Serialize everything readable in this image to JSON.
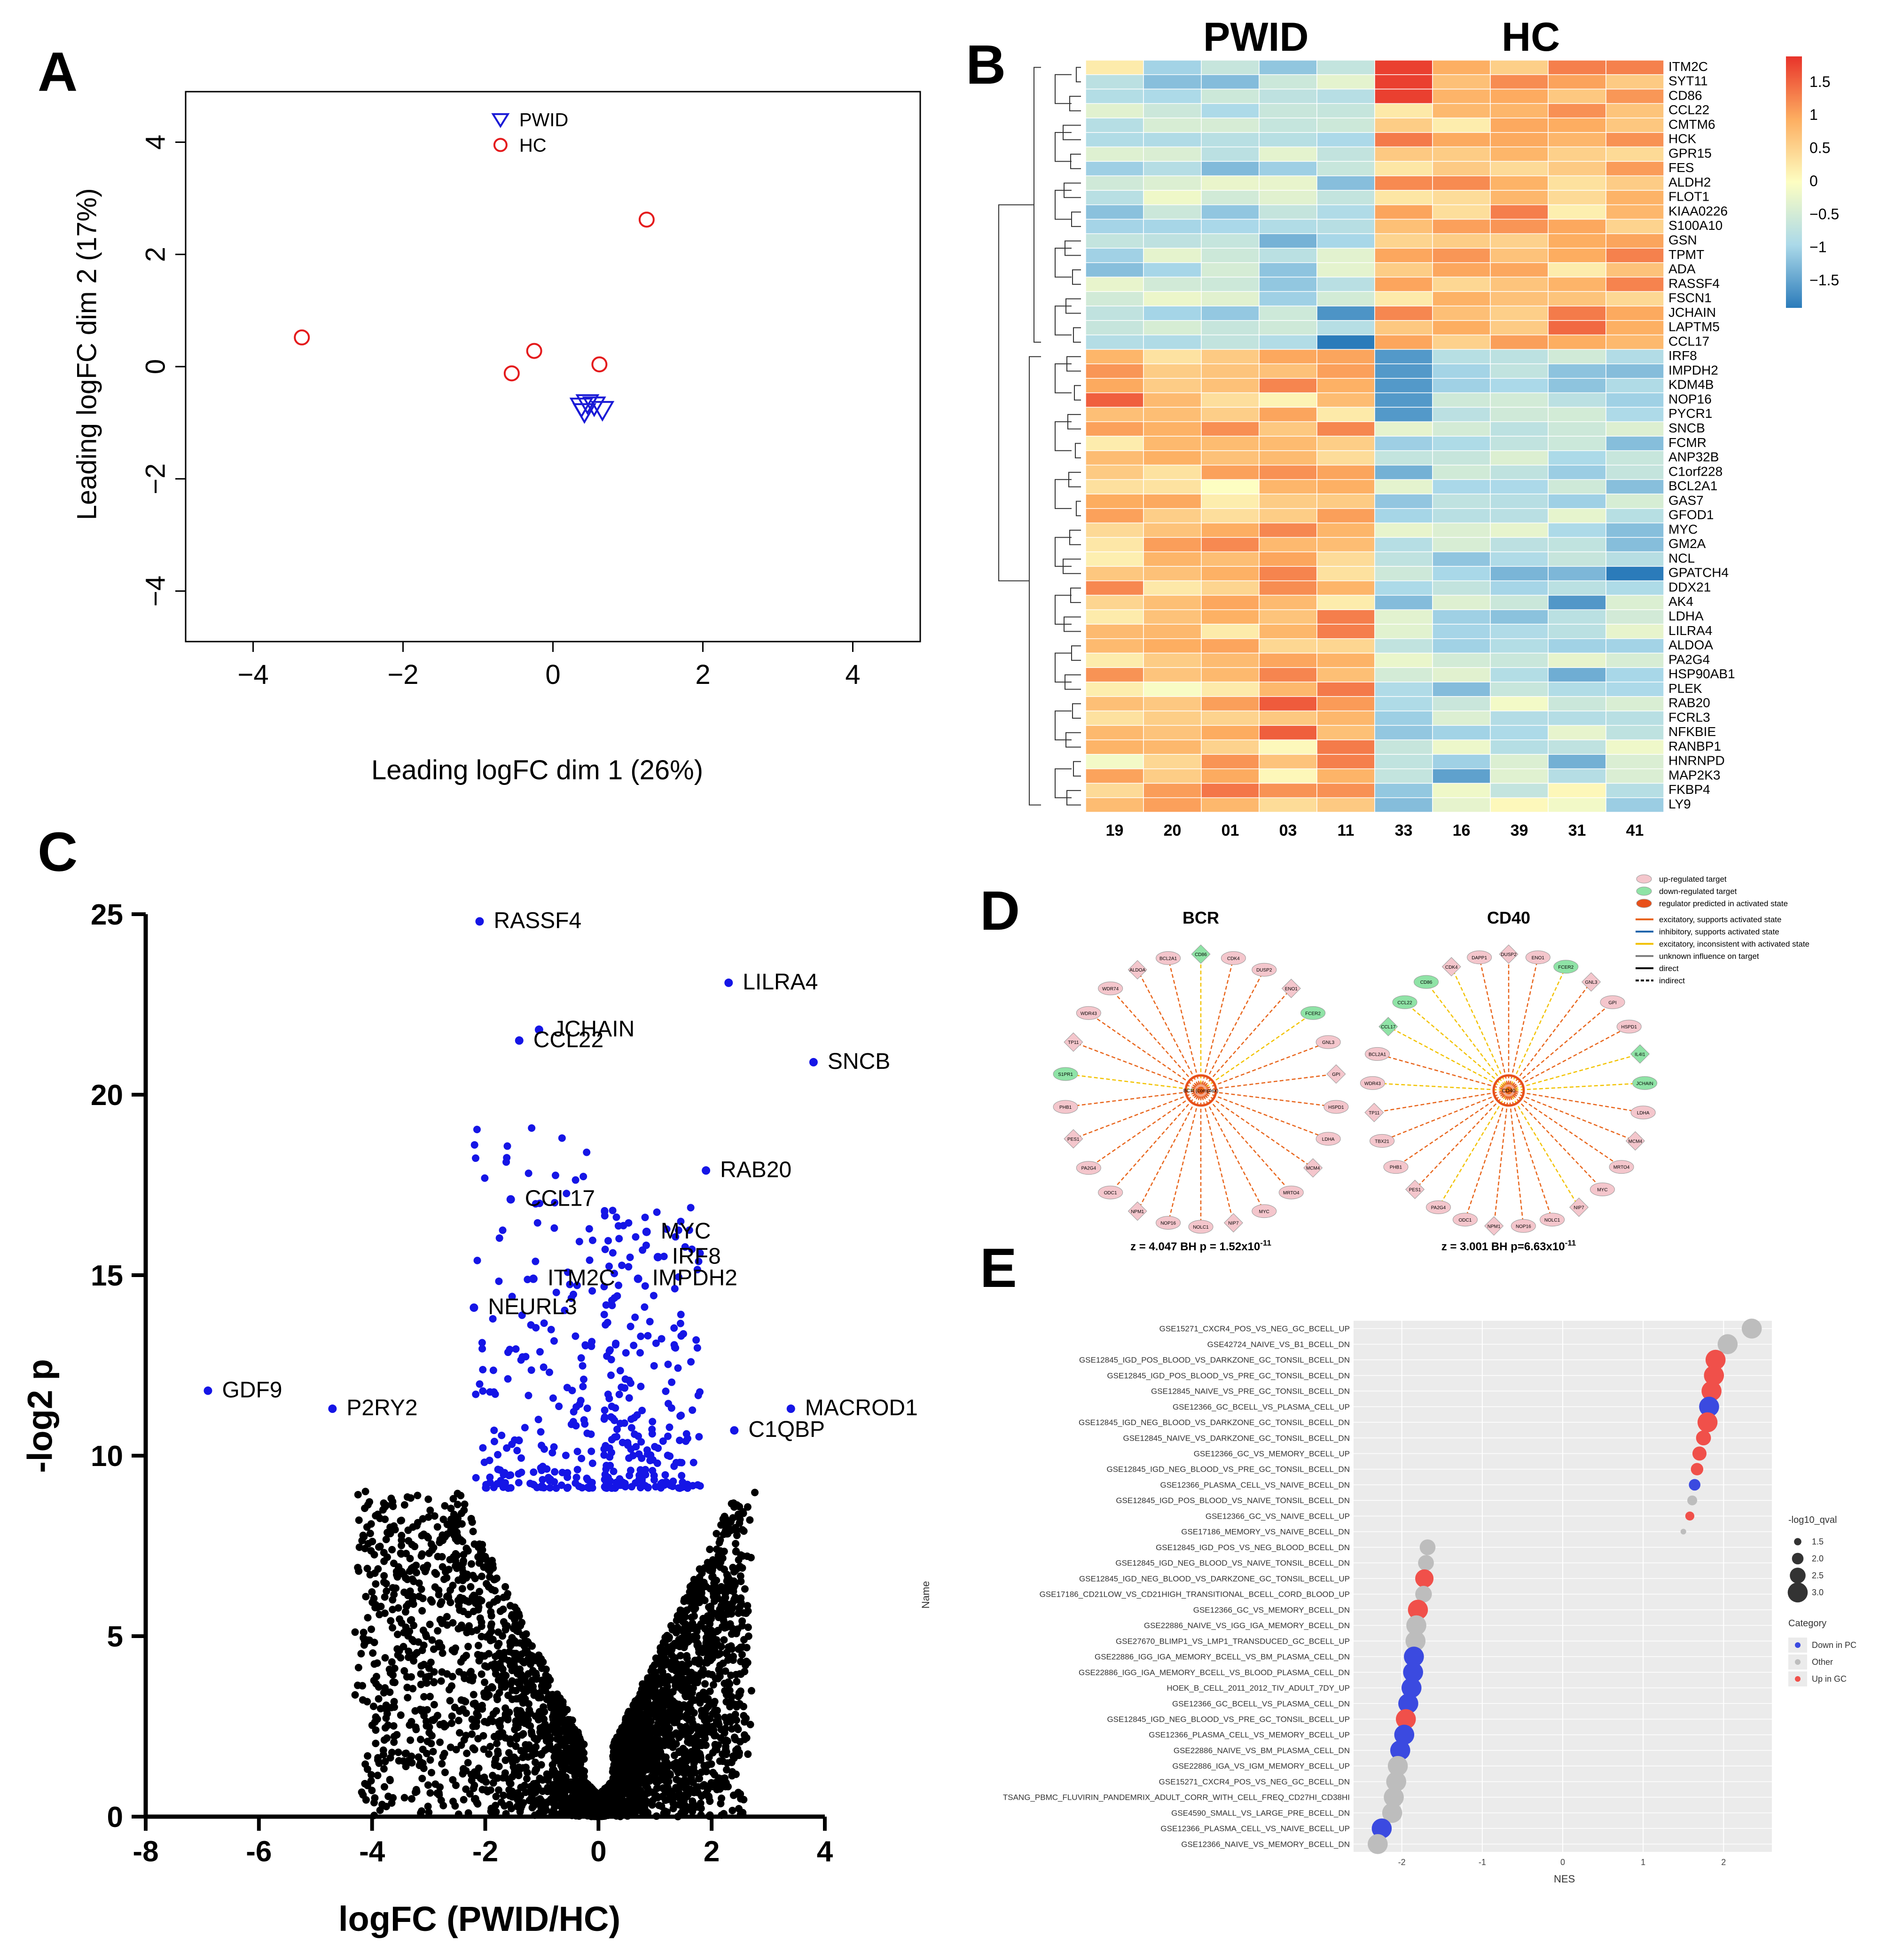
{
  "panel_labels": [
    "A",
    "B",
    "C",
    "D",
    "E"
  ],
  "colors": {
    "pwid": "#1a1ad6",
    "hc": "#e41a1c",
    "volcano_sig": "#1515e6",
    "volcano_ns": "#000000",
    "heat_low": "#2b7bba",
    "heat_mid": "#fdfec2",
    "heat_high": "#e8332a",
    "ipa_up": "#f4c6cc",
    "ipa_down": "#8fe3a6",
    "ipa_activated": "#e8501a",
    "ipa_excitatory": "#e8641a",
    "ipa_inhibitory": "#2166ac",
    "ipa_inconsistent": "#f2c200",
    "ipa_unknown": "#808080",
    "gsea_down": "#3b4ae0",
    "gsea_other": "#bdbdbd",
    "gsea_up": "#f0504a"
  },
  "chart_data": [
    {
      "id": "A",
      "type": "scatter",
      "xlabel": "Leading logFC dim 1 (26%)",
      "ylabel": "Leading logFC dim 2 (17%)",
      "xlim": [
        -4.9,
        4.9
      ],
      "ylim": [
        -4.9,
        4.9
      ],
      "xticks": [
        -4,
        -2,
        0,
        2,
        4
      ],
      "yticks": [
        -4,
        -2,
        0,
        2,
        4
      ],
      "xtick_labels": [
        "−4",
        "−2",
        "0",
        "2",
        "4"
      ],
      "ytick_labels": [
        "−4",
        "−2",
        "0",
        "2",
        "4"
      ],
      "legend_position": "top-center",
      "series": [
        {
          "name": "PWID",
          "marker": "triangle-down",
          "points": [
            [
              0.38,
              -0.72
            ],
            [
              0.46,
              -0.66
            ],
            [
              0.42,
              -0.82
            ],
            [
              0.66,
              -0.78
            ],
            [
              0.55,
              -0.7
            ]
          ]
        },
        {
          "name": "HC",
          "marker": "circle",
          "points": [
            [
              -3.35,
              0.52
            ],
            [
              1.25,
              2.62
            ],
            [
              -0.25,
              0.28
            ],
            [
              -0.55,
              -0.12
            ],
            [
              0.62,
              0.04
            ]
          ]
        }
      ]
    },
    {
      "id": "B",
      "type": "heatmap",
      "group_labels": [
        "PWID",
        "HC"
      ],
      "columns": [
        "19",
        "20",
        "01",
        "03",
        "11",
        "33",
        "16",
        "39",
        "31",
        "41"
      ],
      "rows": [
        "ITM2C",
        "SYT11",
        "CD86",
        "CCL22",
        "CMTM6",
        "HCK",
        "GPR15",
        "FES",
        "ALDH2",
        "FLOT1",
        "KIAA0226",
        "S100A10",
        "GSN",
        "TPMT",
        "ADA",
        "RASSF4",
        "FSCN1",
        "JCHAIN",
        "LAPTM5",
        "CCL17",
        "IRF8",
        "IMPDH2",
        "KDM4B",
        "NOP16",
        "PYCR1",
        "SNCB",
        "FCMR",
        "ANP32B",
        "C1orf228",
        "BCL2A1",
        "GAS7",
        "GFOD1",
        "MYC",
        "GM2A",
        "NCL",
        "GPATCH4",
        "DDX21",
        "AK4",
        "LDHA",
        "LILRA4",
        "ALDOA",
        "PA2G4",
        "HSP90AB1",
        "PLEK",
        "RAB20",
        "FCRL3",
        "NFKBIE",
        "RANBP1",
        "HNRNPD",
        "MAP2K3",
        "FKBP4",
        "LY9"
      ],
      "scale_ticks": [
        1.5,
        1,
        0.5,
        0,
        -0.5,
        -1,
        -1.5
      ],
      "scale_tick_labels": [
        "1.5",
        "1",
        "0.5",
        "0",
        "−0.5",
        "−1",
        "−1.5"
      ],
      "scale_range": [
        -1.9,
        1.9
      ]
    },
    {
      "id": "C",
      "type": "scatter",
      "xlabel": "logFC (PWID/HC)",
      "ylabel": "-log2 p",
      "xlim": [
        -8,
        4
      ],
      "ylim": [
        0,
        25
      ],
      "xticks": [
        -8,
        -6,
        -4,
        -2,
        0,
        2,
        4
      ],
      "yticks": [
        0,
        5,
        10,
        15,
        20,
        25
      ],
      "significance_threshold": 9.1,
      "labeled_points": [
        {
          "label": "RASSF4",
          "x": -2.1,
          "y": 24.8
        },
        {
          "label": "LILRA4",
          "x": 2.3,
          "y": 23.1
        },
        {
          "label": "CCL22",
          "x": -1.4,
          "y": 21.5
        },
        {
          "label": "JCHAIN",
          "x": -1.05,
          "y": 21.8
        },
        {
          "label": "SNCB",
          "x": 3.8,
          "y": 20.9
        },
        {
          "label": "RAB20",
          "x": 1.9,
          "y": 17.9
        },
        {
          "label": "CCL17",
          "x": -1.55,
          "y": 17.1
        },
        {
          "label": "MYC",
          "x": 0.85,
          "y": 16.2
        },
        {
          "label": "IRF8",
          "x": 1.05,
          "y": 15.5
        },
        {
          "label": "ITM2C",
          "x": -1.15,
          "y": 14.9
        },
        {
          "label": "IMPDH2",
          "x": 0.7,
          "y": 14.9
        },
        {
          "label": "NEURL3",
          "x": -2.2,
          "y": 14.1
        },
        {
          "label": "GDF9",
          "x": -6.9,
          "y": 11.8
        },
        {
          "label": "P2RY2",
          "x": -4.7,
          "y": 11.3
        },
        {
          "label": "MACROD1",
          "x": 3.4,
          "y": 11.3
        },
        {
          "label": "C1QBP",
          "x": 2.4,
          "y": 10.7
        }
      ]
    },
    {
      "id": "D",
      "type": "network",
      "networks": [
        {
          "title": "BCR",
          "center": "BCR (complex)",
          "stats": "z = 4.047   BH p = 1.52x10",
          "exponent": "-11",
          "nodes": [
            {
              "name": "CD86",
              "kind": "down"
            },
            {
              "name": "CDK4",
              "kind": "up"
            },
            {
              "name": "DUSP2",
              "kind": "up"
            },
            {
              "name": "ENO1",
              "kind": "up"
            },
            {
              "name": "FCER2",
              "kind": "down"
            },
            {
              "name": "GNL3",
              "kind": "up"
            },
            {
              "name": "GPI",
              "kind": "up"
            },
            {
              "name": "HSPD1",
              "kind": "up"
            },
            {
              "name": "LDHA",
              "kind": "up"
            },
            {
              "name": "MCM4",
              "kind": "up"
            },
            {
              "name": "MRTO4",
              "kind": "up"
            },
            {
              "name": "MYC",
              "kind": "up"
            },
            {
              "name": "NIP7",
              "kind": "up"
            },
            {
              "name": "NOLC1",
              "kind": "up"
            },
            {
              "name": "NOP16",
              "kind": "up"
            },
            {
              "name": "NPM1",
              "kind": "up"
            },
            {
              "name": "ODC1",
              "kind": "up"
            },
            {
              "name": "PA2G4",
              "kind": "up"
            },
            {
              "name": "PES1",
              "kind": "up"
            },
            {
              "name": "PHB1",
              "kind": "up"
            },
            {
              "name": "S1PR1",
              "kind": "down"
            },
            {
              "name": "TP11",
              "kind": "up"
            },
            {
              "name": "WDR43",
              "kind": "up"
            },
            {
              "name": "WDR74",
              "kind": "up"
            },
            {
              "name": "ALDOA",
              "kind": "up"
            },
            {
              "name": "BCL2A1",
              "kind": "up"
            }
          ]
        },
        {
          "title": "CD40",
          "center": "CD40",
          "stats": "z = 3.001   BH p=6.63x10",
          "exponent": "-11",
          "nodes": [
            {
              "name": "DUSP2",
              "kind": "up"
            },
            {
              "name": "ENO1",
              "kind": "up"
            },
            {
              "name": "FCER2",
              "kind": "down"
            },
            {
              "name": "GNL3",
              "kind": "up"
            },
            {
              "name": "GPI",
              "kind": "up"
            },
            {
              "name": "HSPD1",
              "kind": "up"
            },
            {
              "name": "IL4I1",
              "kind": "down"
            },
            {
              "name": "JCHAIN",
              "kind": "down"
            },
            {
              "name": "LDHA",
              "kind": "up"
            },
            {
              "name": "MCM4",
              "kind": "up"
            },
            {
              "name": "MRTO4",
              "kind": "up"
            },
            {
              "name": "MYC",
              "kind": "up"
            },
            {
              "name": "NIP7",
              "kind": "up"
            },
            {
              "name": "NOLC1",
              "kind": "up"
            },
            {
              "name": "NOP16",
              "kind": "up"
            },
            {
              "name": "NPM1",
              "kind": "up"
            },
            {
              "name": "ODC1",
              "kind": "up"
            },
            {
              "name": "PA2G4",
              "kind": "up"
            },
            {
              "name": "PES1",
              "kind": "up"
            },
            {
              "name": "PHB1",
              "kind": "up"
            },
            {
              "name": "TBX21",
              "kind": "up"
            },
            {
              "name": "TP11",
              "kind": "up"
            },
            {
              "name": "WDR43",
              "kind": "up"
            },
            {
              "name": "BCL2A1",
              "kind": "up"
            },
            {
              "name": "CCL17",
              "kind": "down"
            },
            {
              "name": "CCL22",
              "kind": "down"
            },
            {
              "name": "CD86",
              "kind": "down"
            },
            {
              "name": "CDK4",
              "kind": "up"
            },
            {
              "name": "DAPP1",
              "kind": "up"
            }
          ]
        }
      ],
      "legend": [
        {
          "label": "up-regulated target",
          "kind": "up"
        },
        {
          "label": "down-regulated target",
          "kind": "down"
        },
        {
          "label": "regulator predicted in activated state",
          "kind": "activated"
        },
        {
          "label": "excitatory, supports activated state",
          "kind": "excitatory"
        },
        {
          "label": "inhibitory, supports activated state",
          "kind": "inhibitory"
        },
        {
          "label": "excitatory, inconsistent with activated state",
          "kind": "inconsistent"
        },
        {
          "label": "unknown influence on target",
          "kind": "unknown"
        },
        {
          "label": "direct",
          "kind": "direct"
        },
        {
          "label": "indirect",
          "kind": "indirect"
        }
      ]
    },
    {
      "id": "E",
      "type": "scatter",
      "xlabel": "NES",
      "ylabel": "Name",
      "xlim": [
        -2.6,
        2.6
      ],
      "xticks": [
        -2,
        -1,
        0,
        1,
        2
      ],
      "size_legend_title": "-log10_qval",
      "size_legend": [
        1.5,
        2.0,
        2.5,
        3.0
      ],
      "size_legend_labels": [
        "1.5",
        "2.0",
        "2.5",
        "3.0"
      ],
      "category_legend_title": "Category",
      "categories": [
        "Down in PC",
        "Other",
        "Up in GC"
      ],
      "points": [
        {
          "name": "GSE15271_CXCR4_POS_VS_NEG_GC_BCELL_UP",
          "nes": 2.35,
          "q": 3.0,
          "cat": "Other"
        },
        {
          "name": "GSE42724_NAIVE_VS_B1_BCELL_DN",
          "nes": 2.05,
          "q": 3.0,
          "cat": "Other"
        },
        {
          "name": "GSE12845_IGD_POS_BLOOD_VS_DARKZONE_GC_TONSIL_BCELL_DN",
          "nes": 1.9,
          "q": 3.0,
          "cat": "Up in GC"
        },
        {
          "name": "GSE12845_IGD_POS_BLOOD_VS_PRE_GC_TONSIL_BCELL_DN",
          "nes": 1.88,
          "q": 3.0,
          "cat": "Up in GC"
        },
        {
          "name": "GSE12845_NAIVE_VS_PRE_GC_TONSIL_BCELL_DN",
          "nes": 1.85,
          "q": 3.0,
          "cat": "Up in GC"
        },
        {
          "name": "GSE12366_GC_BCELL_VS_PLASMA_CELL_UP",
          "nes": 1.82,
          "q": 3.0,
          "cat": "Down in PC"
        },
        {
          "name": "GSE12845_IGD_NEG_BLOOD_VS_DARKZONE_GC_TONSIL_BCELL_DN",
          "nes": 1.8,
          "q": 3.0,
          "cat": "Up in GC"
        },
        {
          "name": "GSE12845_NAIVE_VS_DARKZONE_GC_TONSIL_BCELL_DN",
          "nes": 1.75,
          "q": 2.4,
          "cat": "Up in GC"
        },
        {
          "name": "GSE12366_GC_VS_MEMORY_BCELL_UP",
          "nes": 1.7,
          "q": 2.3,
          "cat": "Up in GC"
        },
        {
          "name": "GSE12845_IGD_NEG_BLOOD_VS_PRE_GC_TONSIL_BCELL_DN",
          "nes": 1.67,
          "q": 2.1,
          "cat": "Up in GC"
        },
        {
          "name": "GSE12366_PLASMA_CELL_VS_NAIVE_BCELL_DN",
          "nes": 1.64,
          "q": 2.0,
          "cat": "Down in PC"
        },
        {
          "name": "GSE12845_IGD_POS_BLOOD_VS_NAIVE_TONSIL_BCELL_DN",
          "nes": 1.61,
          "q": 1.8,
          "cat": "Other"
        },
        {
          "name": "GSE12366_GC_VS_NAIVE_BCELL_UP",
          "nes": 1.58,
          "q": 1.7,
          "cat": "Up in GC"
        },
        {
          "name": "GSE17186_MEMORY_VS_NAIVE_BCELL_DN",
          "nes": 1.5,
          "q": 1.3,
          "cat": "Other"
        },
        {
          "name": "GSE12845_IGD_POS_VS_NEG_BLOOD_BCELL_DN",
          "nes": -1.68,
          "q": 2.5,
          "cat": "Other"
        },
        {
          "name": "GSE12845_IGD_NEG_BLOOD_VS_NAIVE_TONSIL_BCELL_DN",
          "nes": -1.7,
          "q": 2.5,
          "cat": "Other"
        },
        {
          "name": "GSE12845_IGD_NEG_BLOOD_VS_DARKZONE_GC_TONSIL_BCELL_UP",
          "nes": -1.72,
          "q": 2.8,
          "cat": "Up in GC"
        },
        {
          "name": "GSE17186_CD21LOW_VS_CD21HIGH_TRANSITIONAL_BCELL_CORD_BLOOD_UP",
          "nes": -1.73,
          "q": 2.6,
          "cat": "Other"
        },
        {
          "name": "GSE12366_GC_VS_MEMORY_BCELL_DN",
          "nes": -1.8,
          "q": 3.0,
          "cat": "Up in GC"
        },
        {
          "name": "GSE22886_NAIVE_VS_IGG_IGA_MEMORY_BCELL_DN",
          "nes": -1.82,
          "q": 3.0,
          "cat": "Other"
        },
        {
          "name": "GSE27670_BLIMP1_VS_LMP1_TRANSDUCED_GC_BCELL_UP",
          "nes": -1.83,
          "q": 3.0,
          "cat": "Other"
        },
        {
          "name": "GSE22886_IGG_IGA_MEMORY_BCELL_VS_BM_PLASMA_CELL_DN",
          "nes": -1.85,
          "q": 3.0,
          "cat": "Down in PC"
        },
        {
          "name": "GSE22886_IGG_IGA_MEMORY_BCELL_VS_BLOOD_PLASMA_CELL_DN",
          "nes": -1.86,
          "q": 3.0,
          "cat": "Down in PC"
        },
        {
          "name": "HOEK_B_CELL_2011_2012_TIV_ADULT_7DY_UP",
          "nes": -1.88,
          "q": 3.0,
          "cat": "Down in PC"
        },
        {
          "name": "GSE12366_GC_BCELL_VS_PLASMA_CELL_DN",
          "nes": -1.92,
          "q": 3.0,
          "cat": "Down in PC"
        },
        {
          "name": "GSE12845_IGD_NEG_BLOOD_VS_PRE_GC_TONSIL_BCELL_UP",
          "nes": -1.95,
          "q": 3.0,
          "cat": "Up in GC"
        },
        {
          "name": "GSE12366_PLASMA_CELL_VS_MEMORY_BCELL_UP",
          "nes": -1.97,
          "q": 3.0,
          "cat": "Down in PC"
        },
        {
          "name": "GSE22886_NAIVE_VS_BM_PLASMA_CELL_DN",
          "nes": -2.02,
          "q": 3.0,
          "cat": "Down in PC"
        },
        {
          "name": "GSE22886_IGA_VS_IGM_MEMORY_BCELL_UP",
          "nes": -2.05,
          "q": 3.0,
          "cat": "Other"
        },
        {
          "name": "GSE15271_CXCR4_POS_VS_NEG_GC_BCELL_DN",
          "nes": -2.07,
          "q": 3.0,
          "cat": "Other"
        },
        {
          "name": "TSANG_PBMC_FLUVIRIN_PANDEMRIX_ADULT_CORR_WITH_CELL_FREQ_CD27HI_CD38HI",
          "nes": -2.1,
          "q": 3.0,
          "cat": "Other"
        },
        {
          "name": "GSE4590_SMALL_VS_LARGE_PRE_BCELL_DN",
          "nes": -2.12,
          "q": 3.0,
          "cat": "Other"
        },
        {
          "name": "GSE12366_PLASMA_CELL_VS_NAIVE_BCELL_UP",
          "nes": -2.25,
          "q": 3.0,
          "cat": "Down in PC"
        },
        {
          "name": "GSE12366_NAIVE_VS_MEMORY_BCELL_DN",
          "nes": -2.3,
          "q": 3.0,
          "cat": "Other"
        }
      ]
    }
  ]
}
